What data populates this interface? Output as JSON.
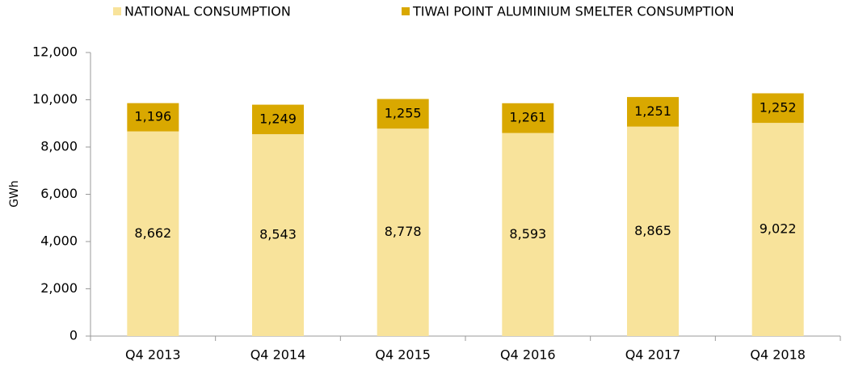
{
  "chart_data": {
    "type": "stacked-bar",
    "ylabel": "GWh",
    "categories": [
      "Q4 2013",
      "Q4 2014",
      "Q4 2015",
      "Q4 2016",
      "Q4 2017",
      "Q4 2018"
    ],
    "series": [
      {
        "name": "NATIONAL CONSUMPTION",
        "color": "#f8e39b",
        "values": [
          8662,
          8543,
          8778,
          8593,
          8865,
          9022
        ],
        "value_labels": [
          "8,662",
          "8,543",
          "8,778",
          "8,593",
          "8,865",
          "9,022"
        ]
      },
      {
        "name": "TIWAI POINT ALUMINIUM SMELTER CONSUMPTION",
        "color": "#d9a800",
        "values": [
          1196,
          1249,
          1255,
          1261,
          1251,
          1252
        ],
        "value_labels": [
          "1,196",
          "1,249",
          "1,255",
          "1,261",
          "1,251",
          "1,252"
        ]
      }
    ],
    "ylim": [
      0,
      12000
    ],
    "yticks": [
      0,
      {
        "value": 2000,
        "label": "2,000"
      },
      {
        "value": 4000,
        "label": "4,000"
      },
      {
        "value": 6000,
        "label": "6,000"
      },
      {
        "value": 8000,
        "label": "8,000"
      },
      {
        "value": 10000,
        "label": "10,000"
      },
      {
        "value": 12000,
        "label": "12,000"
      }
    ],
    "legend": "top"
  }
}
